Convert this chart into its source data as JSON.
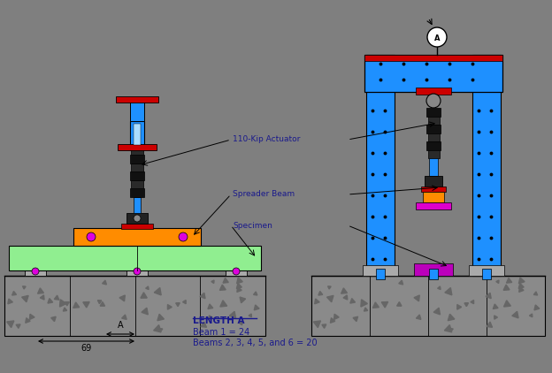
{
  "bg_color": "#7f7f7f",
  "fig_width": 6.24,
  "fig_height": 4.22,
  "dpi": 100,
  "label_110kip": "110-Kip Actuator",
  "label_spreader": "Spreader Beam",
  "label_specimen": "Specimen",
  "label_length_a_title": "LENGTH A",
  "label_beam1": "Beam 1 = 24",
  "label_beams2to6": "Beams 2, 3, 4, 5, and 6 = 20",
  "label_69": "69",
  "label_A": "A",
  "colors": {
    "blue": "#1E90FF",
    "red": "#CC0000",
    "orange": "#FF8C00",
    "green": "#90EE90",
    "black": "#111111",
    "magenta": "#DD00DD",
    "white": "#FFFFFF",
    "dark_gray": "#555555",
    "concrete": "#888888",
    "text_blue": "#1a1a8c"
  }
}
